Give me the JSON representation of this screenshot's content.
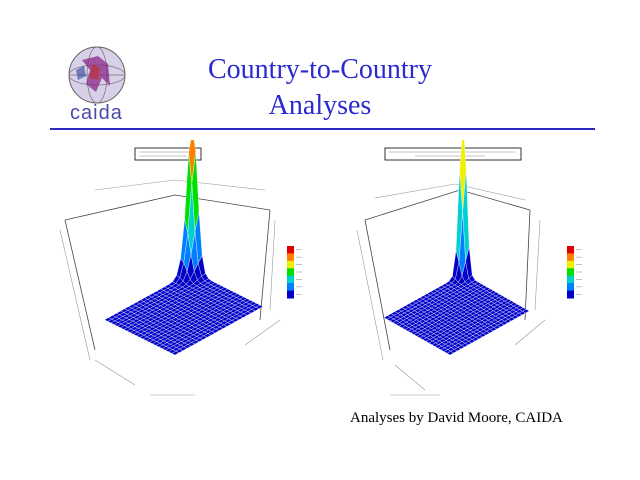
{
  "slide": {
    "title_line1": "Country-to-Country",
    "title_line2": "Analyses",
    "logo_text": "caida",
    "credit": "Analyses by David Moore, CAIDA"
  },
  "chart_data": [
    {
      "type": "surface3d",
      "title": "",
      "peak_position": "back-corner",
      "colorbar": true,
      "colors": [
        "#0000c8",
        "#0080ff",
        "#00d0d0",
        "#00e000",
        "#f0f000",
        "#ff8000",
        "#e00000"
      ]
    },
    {
      "type": "surface3d",
      "title": "",
      "peak_position": "back-corner",
      "colorbar": true,
      "colors": [
        "#0000c8",
        "#0080ff",
        "#00d0d0",
        "#00e000",
        "#f0f000",
        "#ff8000",
        "#e00000"
      ]
    }
  ]
}
